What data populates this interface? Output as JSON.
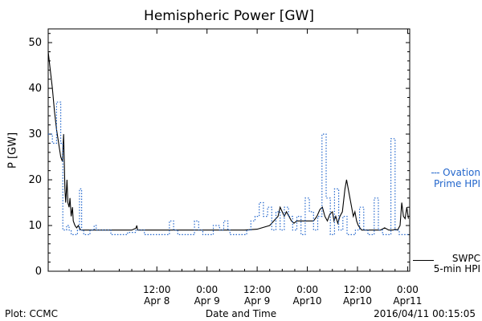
{
  "footer": {
    "plot_credit": "Plot: CCMC",
    "timestamp": "2016/04/11 00:15:05"
  },
  "chart_data": {
    "type": "line",
    "title": "Hemispheric Power [GW]",
    "xlabel": "Date and Time",
    "ylabel": "P [GW]",
    "ylim": [
      0,
      53
    ],
    "yticks": [
      0,
      10,
      20,
      30,
      40,
      50
    ],
    "xlim": [
      -14.0,
      72.5
    ],
    "xticks": [
      {
        "x": 12,
        "label1": "12:00",
        "label2": "Apr 8"
      },
      {
        "x": 24,
        "label1": "0:00",
        "label2": "Apr 9"
      },
      {
        "x": 36,
        "label1": "12:00",
        "label2": "Apr 9"
      },
      {
        "x": 48,
        "label1": "0:00",
        "label2": "Apr10"
      },
      {
        "x": 60,
        "label1": "12:00",
        "label2": "Apr10"
      },
      {
        "x": 72,
        "label1": "0:00",
        "label2": "Apr11"
      }
    ],
    "grid": false,
    "series": [
      {
        "name": "SWPC 5-min HPI",
        "color": "#000000",
        "style": "solid",
        "points": [
          [
            -14.0,
            48
          ],
          [
            -13.5,
            44
          ],
          [
            -13.0,
            40
          ],
          [
            -12.5,
            35
          ],
          [
            -12.0,
            31
          ],
          [
            -11.5,
            28
          ],
          [
            -11.0,
            25
          ],
          [
            -10.6,
            24
          ],
          [
            -10.3,
            30
          ],
          [
            -10.0,
            18
          ],
          [
            -9.8,
            15
          ],
          [
            -9.5,
            20
          ],
          [
            -9.3,
            15
          ],
          [
            -9.0,
            14
          ],
          [
            -8.8,
            16
          ],
          [
            -8.5,
            12
          ],
          [
            -8.2,
            14
          ],
          [
            -8.0,
            11
          ],
          [
            -7.6,
            10
          ],
          [
            -7.2,
            9.5
          ],
          [
            -6.8,
            10
          ],
          [
            -6.4,
            9.2
          ],
          [
            -6.0,
            9
          ],
          [
            -4.0,
            9
          ],
          [
            -2.0,
            9
          ],
          [
            0.0,
            9
          ],
          [
            2.0,
            9
          ],
          [
            4.0,
            9
          ],
          [
            6.0,
            9
          ],
          [
            7.0,
            9.4
          ],
          [
            7.2,
            10
          ],
          [
            7.4,
            9
          ],
          [
            10.0,
            9
          ],
          [
            14.0,
            9
          ],
          [
            18.0,
            9
          ],
          [
            22.0,
            9
          ],
          [
            26.0,
            9
          ],
          [
            28.0,
            9
          ],
          [
            31.0,
            9
          ],
          [
            33.0,
            9
          ],
          [
            36.0,
            9.2
          ],
          [
            39.0,
            10
          ],
          [
            40.0,
            11
          ],
          [
            41.0,
            12
          ],
          [
            41.5,
            14
          ],
          [
            42.0,
            13
          ],
          [
            42.5,
            12
          ],
          [
            43.0,
            13
          ],
          [
            43.6,
            12
          ],
          [
            44.2,
            11
          ],
          [
            44.8,
            10.5
          ],
          [
            45.5,
            11
          ],
          [
            46.5,
            11
          ],
          [
            47.5,
            11
          ],
          [
            48.5,
            11
          ],
          [
            49.5,
            11
          ],
          [
            50.3,
            12
          ],
          [
            51.0,
            13.5
          ],
          [
            51.6,
            14
          ],
          [
            52.2,
            12
          ],
          [
            52.8,
            11
          ],
          [
            53.4,
            12.5
          ],
          [
            54.0,
            13
          ],
          [
            54.4,
            11
          ],
          [
            54.8,
            12
          ],
          [
            55.3,
            10.5
          ],
          [
            55.8,
            12
          ],
          [
            56.4,
            13
          ],
          [
            57.0,
            18
          ],
          [
            57.4,
            20
          ],
          [
            57.8,
            18
          ],
          [
            58.2,
            16
          ],
          [
            58.6,
            14
          ],
          [
            59.0,
            12
          ],
          [
            59.4,
            13
          ],
          [
            59.8,
            11
          ],
          [
            60.2,
            10
          ],
          [
            60.6,
            9.5
          ],
          [
            61.0,
            9
          ],
          [
            62.0,
            9
          ],
          [
            63.5,
            9
          ],
          [
            64.5,
            9
          ],
          [
            65.5,
            9
          ],
          [
            66.5,
            9.5
          ],
          [
            67.5,
            9
          ],
          [
            68.5,
            9
          ],
          [
            69.0,
            9.2
          ],
          [
            69.6,
            9
          ],
          [
            70.2,
            10
          ],
          [
            70.6,
            15
          ],
          [
            71.0,
            12
          ],
          [
            71.4,
            11.5
          ],
          [
            71.8,
            14
          ],
          [
            72.2,
            11.5
          ]
        ]
      },
      {
        "name": "Ovation Prime HPI",
        "color": "#2266cc",
        "style": "dotted-step",
        "points": [
          [
            -14.0,
            30
          ],
          [
            -13.0,
            28
          ],
          [
            -12.0,
            37
          ],
          [
            -11.0,
            28
          ],
          [
            -10.5,
            9
          ],
          [
            -9.6,
            10
          ],
          [
            -9.0,
            9
          ],
          [
            -8.5,
            8
          ],
          [
            -7.0,
            9
          ],
          [
            -6.5,
            18
          ],
          [
            -6.0,
            9
          ],
          [
            -5.5,
            8
          ],
          [
            -4.0,
            9
          ],
          [
            -3.0,
            10
          ],
          [
            -2.5,
            9
          ],
          [
            1.0,
            8
          ],
          [
            3.0,
            8
          ],
          [
            5.0,
            8.5
          ],
          [
            7.0,
            9
          ],
          [
            8.0,
            9
          ],
          [
            9.0,
            8
          ],
          [
            12.0,
            8
          ],
          [
            14.0,
            8
          ],
          [
            15.0,
            11
          ],
          [
            16.0,
            9
          ],
          [
            17.0,
            8
          ],
          [
            20.0,
            8
          ],
          [
            21.0,
            11
          ],
          [
            22.0,
            9
          ],
          [
            23.0,
            8
          ],
          [
            25.5,
            10
          ],
          [
            27.0,
            9
          ],
          [
            28.0,
            11
          ],
          [
            29.0,
            9
          ],
          [
            29.5,
            8
          ],
          [
            33.5,
            9
          ],
          [
            34.5,
            11
          ],
          [
            35.5,
            12
          ],
          [
            36.5,
            15
          ],
          [
            37.5,
            12
          ],
          [
            38.5,
            14
          ],
          [
            39.5,
            9
          ],
          [
            40.5,
            13
          ],
          [
            41.5,
            9
          ],
          [
            42.5,
            14
          ],
          [
            43.5,
            12
          ],
          [
            44.5,
            9
          ],
          [
            45.5,
            12
          ],
          [
            46.5,
            8
          ],
          [
            47.5,
            16
          ],
          [
            48.5,
            13
          ],
          [
            49.5,
            9
          ],
          [
            50.5,
            12
          ],
          [
            51.5,
            30
          ],
          [
            52.5,
            16
          ],
          [
            53.5,
            8
          ],
          [
            54.5,
            18
          ],
          [
            55.5,
            9
          ],
          [
            56.5,
            12
          ],
          [
            57.5,
            8
          ],
          [
            59.5,
            9
          ],
          [
            60.5,
            14
          ],
          [
            61.5,
            9
          ],
          [
            62.5,
            8
          ],
          [
            64.0,
            16
          ],
          [
            65.0,
            9
          ],
          [
            66.0,
            8
          ],
          [
            68.0,
            29
          ],
          [
            69.0,
            9
          ],
          [
            70.0,
            8
          ],
          [
            72.2,
            8
          ]
        ]
      }
    ],
    "legend": [
      {
        "series": 1,
        "lines": [
          "Ovation",
          "Prime HPI"
        ],
        "placement": "right-middle"
      },
      {
        "series": 0,
        "lines": [
          "SWPC",
          "5-min HPI"
        ],
        "placement": "right-bottom"
      }
    ]
  }
}
